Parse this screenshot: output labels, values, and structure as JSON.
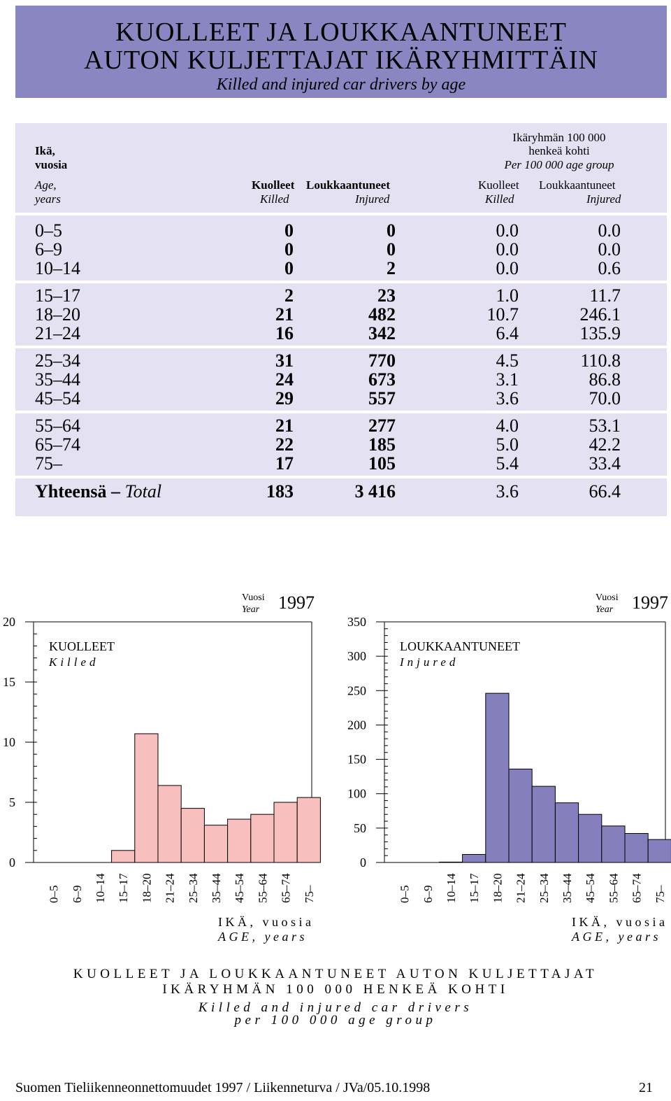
{
  "title": {
    "line1": "KUOLLEET  JA  LOUKKAANTUNEET",
    "line2": "AUTON  KULJETTAJAT  IKÄRYHMITTÄIN",
    "subtitle": "Killed and injured car drivers by age"
  },
  "table": {
    "header": {
      "age_fi_1": "Ikä,",
      "age_fi_2": "vuosia",
      "age_en_1": "Age,",
      "age_en_2": "years",
      "killed_fi": "Kuolleet",
      "injured_fi": "Loukkaantuneet",
      "killed_en": "Killed",
      "injured_en": "Injured",
      "per_fi_1": "Ikäryhmän 100 000",
      "per_fi_2": "henkeä kohti",
      "per_en": "Per 100 000 age group",
      "rate_killed_fi": "Kuolleet",
      "rate_injured_fi": "Loukkaantuneet",
      "rate_killed_en": "Killed",
      "rate_injured_en": "Injured"
    },
    "rows": [
      {
        "age": "0–5",
        "killed": "0",
        "injured": "0",
        "killed_rate": "0.0",
        "injured_rate": "0.0"
      },
      {
        "age": "6–9",
        "killed": "0",
        "injured": "0",
        "killed_rate": "0.0",
        "injured_rate": "0.0"
      },
      {
        "age": "10–14",
        "killed": "0",
        "injured": "2",
        "killed_rate": "0.0",
        "injured_rate": "0.6"
      },
      {
        "age": "15–17",
        "killed": "2",
        "injured": "23",
        "killed_rate": "1.0",
        "injured_rate": "11.7"
      },
      {
        "age": "18–20",
        "killed": "21",
        "injured": "482",
        "killed_rate": "10.7",
        "injured_rate": "246.1"
      },
      {
        "age": "21–24",
        "killed": "16",
        "injured": "342",
        "killed_rate": "6.4",
        "injured_rate": "135.9"
      },
      {
        "age": "25–34",
        "killed": "31",
        "injured": "770",
        "killed_rate": "4.5",
        "injured_rate": "110.8"
      },
      {
        "age": "35–44",
        "killed": "24",
        "injured": "673",
        "killed_rate": "3.1",
        "injured_rate": "86.8"
      },
      {
        "age": "45–54",
        "killed": "29",
        "injured": "557",
        "killed_rate": "3.6",
        "injured_rate": "70.0"
      },
      {
        "age": "55–64",
        "killed": "21",
        "injured": "277",
        "killed_rate": "4.0",
        "injured_rate": "53.1"
      },
      {
        "age": "65–74",
        "killed": "22",
        "injured": "185",
        "killed_rate": "5.0",
        "injured_rate": "42.2"
      },
      {
        "age": "75–",
        "killed": "17",
        "injured": "105",
        "killed_rate": "5.4",
        "injured_rate": "33.4"
      }
    ],
    "total": {
      "label_fi": "Yhteensä –",
      "label_en": "Total",
      "killed": "183",
      "injured": "3 416",
      "killed_rate": "3.6",
      "injured_rate": "66.4"
    }
  },
  "chart_data": [
    {
      "type": "bar",
      "title": "KUOLLEET",
      "subtitle": "Killed",
      "year_label_fi": "Vuosi",
      "year_label_en": "Year",
      "year": "1997",
      "categories": [
        "0–5",
        "6–9",
        "10–14",
        "15–17",
        "18–20",
        "21–24",
        "25–34",
        "35–44",
        "45–54",
        "55–64",
        "65–74",
        "75–"
      ],
      "values": [
        0.0,
        0.0,
        0.0,
        1.0,
        10.7,
        6.4,
        4.5,
        3.1,
        3.6,
        4.0,
        5.0,
        5.4
      ],
      "ylim": [
        0,
        20
      ],
      "yticks": [
        0,
        5,
        10,
        15,
        20
      ],
      "xlabel_fi": "IKÄ, vuosia",
      "xlabel_en": "AGE, years",
      "color": "#f7bfbd"
    },
    {
      "type": "bar",
      "title": "LOUKKAANTUNEET",
      "subtitle": "Injured",
      "year_label_fi": "Vuosi",
      "year_label_en": "Year",
      "year": "1997",
      "categories": [
        "0–5",
        "6–9",
        "10–14",
        "15–17",
        "18–20",
        "21–24",
        "25–34",
        "35–44",
        "45–54",
        "55–64",
        "65–74",
        "75–"
      ],
      "values": [
        0.0,
        0.0,
        0.6,
        11.7,
        246.1,
        135.9,
        110.8,
        86.8,
        70.0,
        53.1,
        42.2,
        33.4
      ],
      "ylim": [
        0,
        350
      ],
      "yticks": [
        0,
        50,
        100,
        150,
        200,
        250,
        300,
        350
      ],
      "xlabel_fi": "IKÄ, vuosia",
      "xlabel_en": "AGE, years",
      "color": "#8580bd"
    }
  ],
  "caption": {
    "line1": "KUOLLEET JA LOUKKAANTUNEET AUTON KULJETTAJAT",
    "line2": "IKÄRYHMÄN 100 000 HENKEÄ KOHTI",
    "line3": "Killed and injured car drivers",
    "line4": "per 100 000 age group"
  },
  "footer": {
    "text": "Suomen Tieliikenneonnettomuudet 1997 / Liikenneturva  / JVa/05.10.1998",
    "page": "21"
  }
}
